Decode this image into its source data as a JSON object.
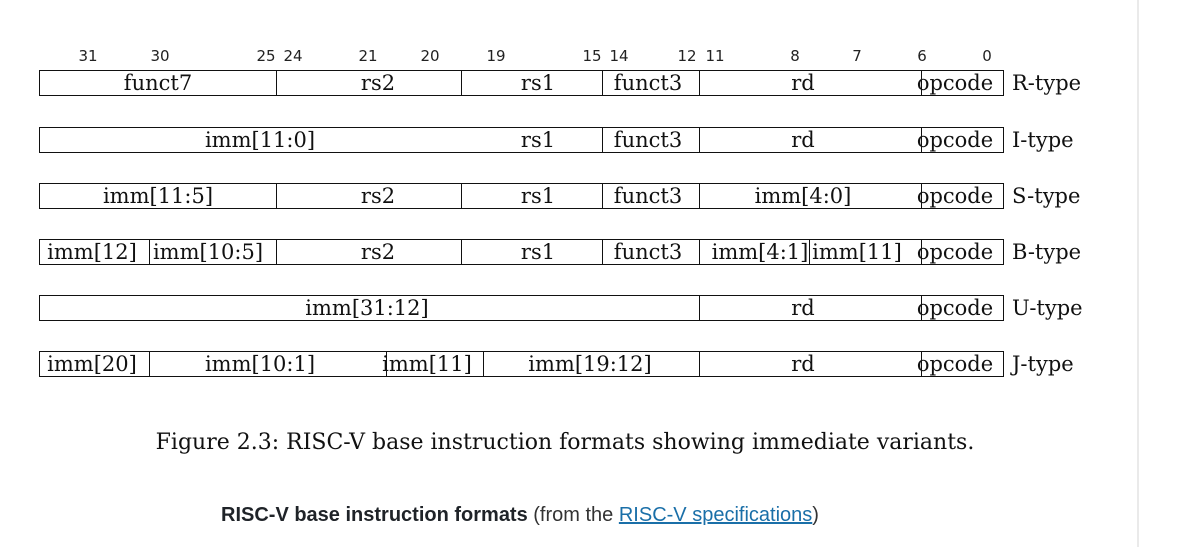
{
  "bit_numbers": [
    "31",
    "30",
    "25",
    "24",
    "21",
    "20",
    "19",
    "15",
    "14",
    "12",
    "11",
    "8",
    "7",
    "6",
    "0"
  ],
  "formats": [
    {
      "type": "R-type",
      "fields": [
        {
          "label": "funct7"
        },
        {
          "label": "rs2"
        },
        {
          "label": "rs1"
        },
        {
          "label": "funct3"
        },
        {
          "label": "rd"
        },
        {
          "label": "opcode"
        }
      ]
    },
    {
      "type": "I-type",
      "fields": [
        {
          "label": "imm[11:0]"
        },
        {
          "label": "rs1"
        },
        {
          "label": "funct3"
        },
        {
          "label": "rd"
        },
        {
          "label": "opcode"
        }
      ]
    },
    {
      "type": "S-type",
      "fields": [
        {
          "label": "imm[11:5]"
        },
        {
          "label": "rs2"
        },
        {
          "label": "rs1"
        },
        {
          "label": "funct3"
        },
        {
          "label": "imm[4:0]"
        },
        {
          "label": "opcode"
        }
      ]
    },
    {
      "type": "B-type",
      "fields": [
        {
          "label": "imm[12]"
        },
        {
          "label": "imm[10:5]"
        },
        {
          "label": "rs2"
        },
        {
          "label": "rs1"
        },
        {
          "label": "funct3"
        },
        {
          "label": "imm[4:1]"
        },
        {
          "label": "imm[11]"
        },
        {
          "label": "opcode"
        }
      ]
    },
    {
      "type": "U-type",
      "fields": [
        {
          "label": "imm[31:12]"
        },
        {
          "label": "rd"
        },
        {
          "label": "opcode"
        }
      ]
    },
    {
      "type": "J-type",
      "fields": [
        {
          "label": "imm[20]"
        },
        {
          "label": "imm[10:1]"
        },
        {
          "label": "imm[11]"
        },
        {
          "label": "imm[19:12]"
        },
        {
          "label": "rd"
        },
        {
          "label": "opcode"
        }
      ]
    }
  ],
  "caption": "Figure 2.3: RISC-V base instruction formats showing immediate variants.",
  "footer": {
    "bold": "RISC-V base instruction formats",
    "prefix": " (from the ",
    "link": "RISC-V specifications",
    "suffix": ")"
  },
  "colors": {
    "link": "#1a6fa8",
    "border": "#111111"
  }
}
